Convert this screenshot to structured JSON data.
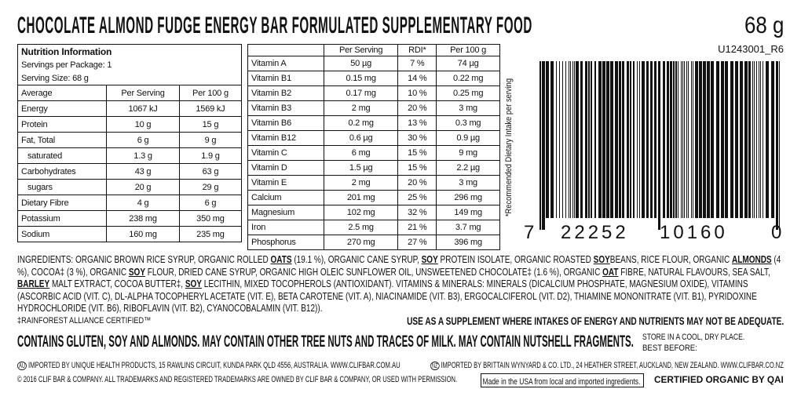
{
  "title": "CHOCOLATE ALMOND FUDGE ENERGY BAR FORMULATED SUPPLEMENTARY FOOD",
  "net_weight": "68 g",
  "nutrition": {
    "heading": "Nutrition Information",
    "servings": "Servings per Package: 1",
    "serving_size": "Serving Size: 68 g",
    "columns": [
      "Average",
      "Per Serving",
      "Per 100 g"
    ],
    "rows": [
      [
        "Energy",
        "1067 kJ",
        "1569 kJ"
      ],
      [
        "Protein",
        "10 g",
        "15 g"
      ],
      [
        "Fat, Total",
        "6 g",
        "9 g"
      ],
      [
        "saturated",
        "1.3 g",
        "1.9 g"
      ],
      [
        "Carbohydrates",
        "43 g",
        "63 g"
      ],
      [
        "sugars",
        "20 g",
        "29 g"
      ],
      [
        "Dietary Fibre",
        "4 g",
        "6 g"
      ],
      [
        "Potassium",
        "238 mg",
        "350 mg"
      ],
      [
        "Sodium",
        "160 mg",
        "235 mg"
      ]
    ]
  },
  "vitamins": {
    "columns": [
      "Per Serving",
      "RDI*",
      "Per 100 g"
    ],
    "rows": [
      [
        "Vitamin A",
        "50 µg",
        "7 %",
        "74 µg"
      ],
      [
        "Vitamin B1",
        "0.15 mg",
        "14 %",
        "0.22 mg"
      ],
      [
        "Vitamin B2",
        "0.17 mg",
        "10 %",
        "0.25 mg"
      ],
      [
        "Vitamin B3",
        "2 mg",
        "20 %",
        "3 mg"
      ],
      [
        "Vitamin B6",
        "0.2 mg",
        "13 %",
        "0.3 mg"
      ],
      [
        "Vitamin B12",
        "0.6 µg",
        "30 %",
        "0.9 µg"
      ],
      [
        "Vitamin C",
        "6 mg",
        "15 %",
        "9 mg"
      ],
      [
        "Vitamin D",
        "1.5 µg",
        "15 %",
        "2.2 µg"
      ],
      [
        "Vitamin E",
        "2 mg",
        "20 %",
        "3 mg"
      ],
      [
        "Calcium",
        "201 mg",
        "25 %",
        "296 mg"
      ],
      [
        "Magnesium",
        "102 mg",
        "32 %",
        "149 mg"
      ],
      [
        "Iron",
        "2.5 mg",
        "21 %",
        "3.7 mg"
      ],
      [
        "Phosphorus",
        "270 mg",
        "27 %",
        "396 mg"
      ]
    ],
    "note": "*Recommended Dietary Intake per serving"
  },
  "barcode": {
    "code": "U1243001_R6",
    "digits": [
      "7",
      "22252",
      "10160",
      "0"
    ]
  },
  "ingredients": {
    "segments": [
      {
        "text": "INGREDIENTS: ORGANIC BROWN RICE SYRUP, ORGANIC ROLLED "
      },
      {
        "text": "OATS",
        "emphasis": true
      },
      {
        "text": " (19.1 %), ORGANIC CANE SYRUP, "
      },
      {
        "text": "SOY",
        "emphasis": true
      },
      {
        "text": " PROTEIN ISOLATE, ORGANIC ROASTED "
      },
      {
        "text": "SOY",
        "emphasis": true
      },
      {
        "text": "BEANS, RICE FLOUR, ORGANIC "
      },
      {
        "text": "ALMONDS",
        "emphasis": true
      },
      {
        "text": " (4 %), COCOA‡ (3 %), ORGANIC "
      },
      {
        "text": "SOY",
        "emphasis": true
      },
      {
        "text": " FLOUR, DRIED CANE SYRUP, ORGANIC HIGH OLEIC SUNFLOWER OIL, UNSWEETENED CHOCOLATE‡ (1.6 %), ORGANIC "
      },
      {
        "text": "OAT",
        "emphasis": true
      },
      {
        "text": " FIBRE, NATURAL FLAVOURS, SEA SALT, "
      },
      {
        "text": "BARLEY",
        "emphasis": true
      },
      {
        "text": " MALT EXTRACT, COCOA BUTTER‡, "
      },
      {
        "text": "SOY",
        "emphasis": true
      },
      {
        "text": " LECITHIN, MIXED TOCOPHEROLS (ANTIOXIDANT). VITAMINS & MINERALS: MINERALS (DICALCIUM PHOSPHATE, MAGNESIUM OXIDE), VITAMINS (ASCORBIC ACID (VIT. C), DL-ALPHA TOCOPHERYL ACETATE (VIT. E), BETA CAROTENE (VIT. A), NIACINAMIDE (VIT. B3), ERGOCALCIFEROL (VIT. D2), THIAMINE MONONITRATE (VIT. B1), PYRIDOXINE HYDROCHLORIDE (VIT. B6), RIBOFLAVIN (VIT. B2), CYANOCOBALAMIN (VIT. B12))."
      }
    ]
  },
  "rainforest": "‡RAINFOREST ALLIANCE CERTIFIED™",
  "supplement": "USE AS A SUPPLEMENT WHERE INTAKES OF ENERGY AND NUTRIENTS MAY NOT BE ADEQUATE.",
  "allergens": "CONTAINS GLUTEN, SOY AND ALMONDS. MAY CONTAIN OTHER TREE NUTS AND TRACES OF MILK. MAY CONTAIN NUTSHELL FRAGMENTS.",
  "storage": "STORE IN A COOL, DRY PLACE.",
  "best_before": "BEST BEFORE:",
  "importer_au": {
    "badge": "AU",
    "text": "IMPORTED BY UNIQUE HEALTH PRODUCTS, 15 RAWLINS CIRCUIT, KUNDA PARK QLD 4556, AUSTRALIA. WWW.CLIFBAR.COM.AU"
  },
  "importer_nz": {
    "badge": "NZ",
    "text": "IMPORTED BY BRITTAIN WYNYARD & CO. LTD., 24 HEATHER STREET, AUCKLAND, NEW ZEALAND. WWW.CLIFBAR.CO.NZ"
  },
  "copyright": "© 2016 CLIF BAR & COMPANY. ALL TRADEMARKS AND REGISTERED TRADEMARKS ARE OWNED BY CLIF BAR & COMPANY, OR USED WITH PERMISSION.",
  "origin": "Made in the USA from local and imported ingredients.",
  "certification": "CERTIFIED ORGANIC BY QAI"
}
